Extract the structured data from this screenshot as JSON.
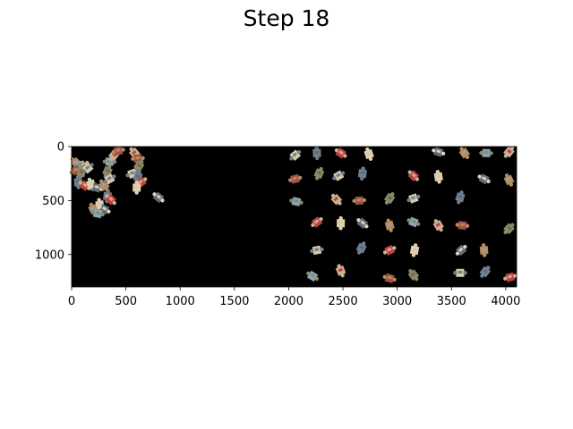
{
  "title": "Step 18",
  "puzzle_view": {
    "canvas_color": "#000000",
    "x_range": [
      0,
      4100
    ],
    "y_range": [
      1300,
      0
    ],
    "x_ticks": [
      0,
      500,
      1000,
      1500,
      2000,
      2500,
      3000,
      3500,
      4000
    ],
    "y_ticks": [
      0,
      500,
      1000
    ],
    "assembled_cluster": [
      [
        40,
        150
      ],
      [
        80,
        170
      ],
      [
        120,
        190
      ],
      [
        40,
        220
      ],
      [
        90,
        240
      ],
      [
        150,
        200
      ],
      [
        60,
        330
      ],
      [
        120,
        360
      ],
      [
        180,
        350
      ],
      [
        230,
        380
      ],
      [
        300,
        360
      ],
      [
        350,
        140
      ],
      [
        390,
        80
      ],
      [
        430,
        40
      ],
      [
        330,
        230
      ],
      [
        350,
        300
      ],
      [
        330,
        460
      ],
      [
        360,
        490
      ],
      [
        260,
        540
      ],
      [
        300,
        580
      ],
      [
        200,
        580
      ],
      [
        240,
        620
      ],
      [
        580,
        60
      ],
      [
        610,
        110
      ],
      [
        620,
        180
      ],
      [
        560,
        250
      ],
      [
        610,
        280
      ],
      [
        640,
        330
      ],
      [
        600,
        380
      ],
      [
        800,
        470
      ]
    ],
    "loose_pieces": [
      [
        2060,
        80
      ],
      [
        2260,
        60
      ],
      [
        2480,
        60
      ],
      [
        2740,
        70
      ],
      [
        3380,
        50
      ],
      [
        3620,
        60
      ],
      [
        3820,
        60
      ],
      [
        4030,
        50
      ],
      [
        2060,
        300
      ],
      [
        2280,
        250
      ],
      [
        2460,
        270
      ],
      [
        2680,
        250
      ],
      [
        3150,
        270
      ],
      [
        3380,
        280
      ],
      [
        3800,
        300
      ],
      [
        4030,
        310
      ],
      [
        2070,
        510
      ],
      [
        2440,
        490
      ],
      [
        2650,
        500
      ],
      [
        2930,
        480
      ],
      [
        3150,
        480
      ],
      [
        3580,
        470
      ],
      [
        2260,
        700
      ],
      [
        2480,
        710
      ],
      [
        2680,
        710
      ],
      [
        2930,
        730
      ],
      [
        3150,
        700
      ],
      [
        3380,
        730
      ],
      [
        3600,
        730
      ],
      [
        4030,
        760
      ],
      [
        2260,
        960
      ],
      [
        2670,
        940
      ],
      [
        2930,
        960
      ],
      [
        3160,
        960
      ],
      [
        3590,
        960
      ],
      [
        3800,
        960
      ],
      [
        2220,
        1200
      ],
      [
        2480,
        1150
      ],
      [
        2930,
        1220
      ],
      [
        3150,
        1190
      ],
      [
        3580,
        1170
      ],
      [
        3810,
        1160
      ],
      [
        4040,
        1210
      ]
    ]
  }
}
